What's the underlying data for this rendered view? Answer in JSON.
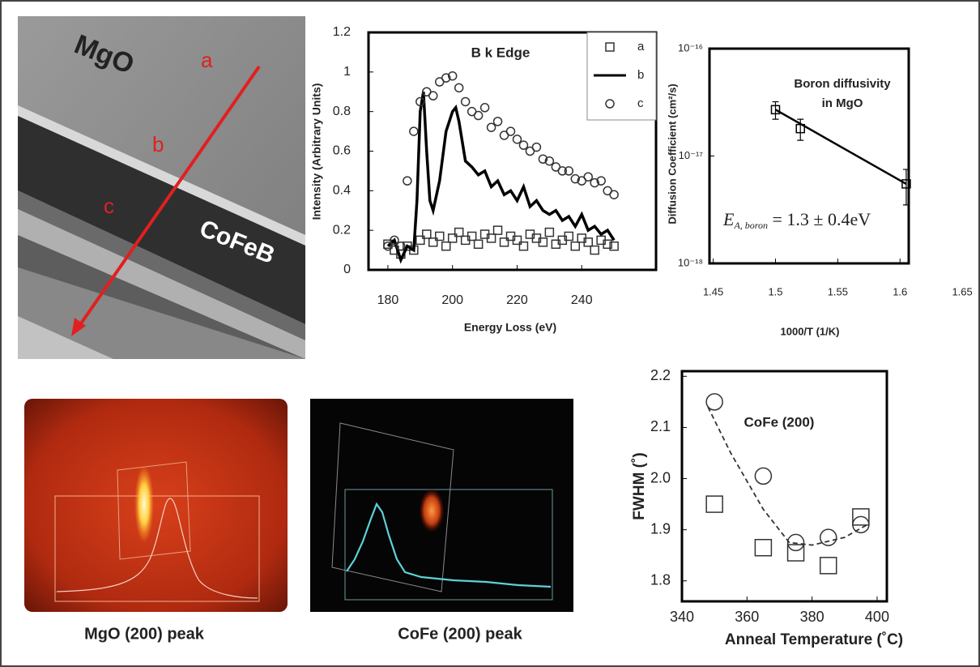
{
  "chart_data": [
    {
      "type": "line",
      "annotations": [
        "B k Edge"
      ],
      "x_label": "Energy Loss (eV)",
      "y_label": "Intensity (Arbitrary Units)",
      "xlim": [
        174,
        263
      ],
      "ylim": [
        0,
        1.2
      ],
      "xticks": [
        180,
        200,
        220,
        240
      ],
      "yticks": [
        0,
        0.2,
        0.4,
        0.6,
        0.8,
        1,
        1.2
      ],
      "legend": "upper right",
      "series": [
        {
          "name": "a",
          "marker": "square",
          "color": "#333",
          "x": [
            180,
            182,
            184,
            186,
            188,
            190,
            192,
            194,
            196,
            198,
            200,
            202,
            204,
            206,
            208,
            210,
            212,
            214,
            216,
            218,
            220,
            222,
            224,
            226,
            228,
            230,
            232,
            234,
            236,
            238,
            240,
            242,
            244,
            246,
            248,
            250
          ],
          "values": [
            0.13,
            0.1,
            0.08,
            0.12,
            0.1,
            0.15,
            0.18,
            0.14,
            0.17,
            0.12,
            0.16,
            0.19,
            0.15,
            0.17,
            0.13,
            0.18,
            0.16,
            0.2,
            0.14,
            0.17,
            0.15,
            0.12,
            0.18,
            0.16,
            0.14,
            0.19,
            0.13,
            0.15,
            0.17,
            0.12,
            0.16,
            0.14,
            0.1,
            0.15,
            0.13,
            0.12
          ]
        },
        {
          "name": "b",
          "marker": "line",
          "color": "#000",
          "x": [
            180,
            182,
            184,
            186,
            188,
            189,
            190,
            191,
            192,
            193,
            194,
            196,
            198,
            200,
            201,
            202,
            204,
            206,
            208,
            210,
            212,
            214,
            216,
            218,
            220,
            222,
            224,
            226,
            228,
            230,
            232,
            234,
            236,
            238,
            240,
            242,
            244,
            246,
            248,
            250
          ],
          "values": [
            0.12,
            0.15,
            0.05,
            0.12,
            0.1,
            0.35,
            0.8,
            0.9,
            0.6,
            0.35,
            0.3,
            0.45,
            0.7,
            0.8,
            0.82,
            0.75,
            0.55,
            0.52,
            0.48,
            0.5,
            0.42,
            0.45,
            0.38,
            0.4,
            0.35,
            0.42,
            0.32,
            0.35,
            0.3,
            0.28,
            0.3,
            0.25,
            0.27,
            0.22,
            0.28,
            0.2,
            0.22,
            0.18,
            0.2,
            0.15
          ]
        },
        {
          "name": "c",
          "marker": "circle",
          "color": "#333",
          "x": [
            180,
            182,
            184,
            186,
            188,
            190,
            192,
            194,
            196,
            198,
            200,
            202,
            204,
            206,
            208,
            210,
            212,
            214,
            216,
            218,
            220,
            222,
            224,
            226,
            228,
            230,
            232,
            234,
            236,
            238,
            240,
            242,
            244,
            246,
            248,
            250
          ],
          "values": [
            0.12,
            0.15,
            0.12,
            0.45,
            0.7,
            0.85,
            0.9,
            0.88,
            0.95,
            0.97,
            0.98,
            0.92,
            0.85,
            0.8,
            0.78,
            0.82,
            0.72,
            0.75,
            0.68,
            0.7,
            0.66,
            0.63,
            0.6,
            0.62,
            0.56,
            0.55,
            0.52,
            0.5,
            0.5,
            0.46,
            0.45,
            0.47,
            0.44,
            0.45,
            0.4,
            0.38
          ]
        }
      ]
    },
    {
      "type": "scatter",
      "annotations": [
        "Boron diffusivity",
        "in MgO"
      ],
      "formula": [
        "E",
        "A, boron",
        " = 1.3 ± 0.4eV"
      ],
      "x_label": "1000/T (1/K)",
      "y_label": "Diffusion Coefficient (cm²/s)",
      "log_y": true,
      "xlim": [
        1.447,
        1.607
      ],
      "ylim": [
        1e-18,
        1e-16
      ],
      "xticks": [
        1.45,
        1.5,
        1.55,
        1.6,
        1.65
      ],
      "yticks": [
        {
          "value": 1e-18,
          "label": "10⁻¹⁸"
        },
        {
          "value": 1e-17,
          "label": "10⁻¹⁷"
        },
        {
          "value": 1e-16,
          "label": "10⁻¹⁶"
        }
      ],
      "series": [
        {
          "marker": "square",
          "color": "#000",
          "x": [
            1.5,
            1.52,
            1.605
          ],
          "values": [
            2.7e-17,
            1.8e-17,
            5.5e-18
          ],
          "errors": [
            5e-18,
            4e-18,
            2e-18
          ]
        }
      ],
      "fit": {
        "color": "#000",
        "x": [
          1.5,
          1.605
        ],
        "values": [
          2.7e-17,
          5.5e-18
        ]
      }
    },
    {
      "type": "scatter",
      "annotations": [
        "CoFe (200)"
      ],
      "x_label": "Anneal Temperature (˚C)",
      "y_label": "FWHM (˚)",
      "xlim": [
        340,
        403
      ],
      "ylim": [
        1.76,
        2.21
      ],
      "xticks": [
        340,
        360,
        380,
        400
      ],
      "yticks": [
        1.8,
        1.9,
        {
          "value": 2,
          "label": "2.0"
        },
        2.1,
        2.2
      ],
      "series": [
        {
          "marker": "circle",
          "color": "#333",
          "x": [
            350,
            365,
            375,
            385,
            395
          ],
          "values": [
            2.15,
            2.005,
            1.875,
            1.885,
            1.91
          ]
        },
        {
          "marker": "square",
          "color": "#333",
          "x": [
            350,
            365,
            375,
            385,
            395
          ],
          "values": [
            1.95,
            1.865,
            1.855,
            1.83,
            1.925
          ]
        },
        {
          "marker": "dashed",
          "color": "#333",
          "x": [
            348,
            355,
            365,
            373,
            380,
            390,
            397
          ],
          "values": [
            2.14,
            2.05,
            1.94,
            1.875,
            1.87,
            1.885,
            1.91
          ]
        }
      ]
    }
  ],
  "images": {
    "tem_labels": [
      "MgO",
      "a",
      "b",
      "c",
      "CoFeB"
    ],
    "captions": [
      "MgO (200) peak",
      "CoFe (200) peak"
    ]
  }
}
